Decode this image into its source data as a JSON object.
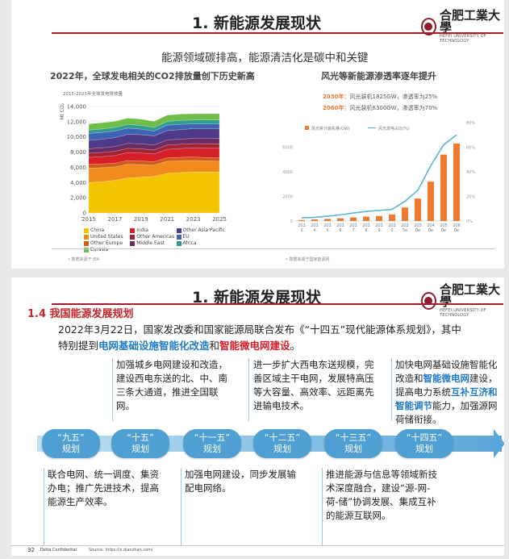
{
  "slide1": {
    "title": "1. 新能源发展现状",
    "subtitle": "能源领域碳排高，能源清洁化是碳中和关键",
    "logo": {
      "name": "合肥工業大學",
      "en": "HEFEI UNIVERSITY OF TECHNOLOGY"
    },
    "left_chart_title": "2022年，全球发电相关的CO2排放量创下历史新高",
    "right_chart_title": "风光等新能源渗透率逐年提升",
    "left_source": "• 数据来源于 IEA",
    "right_source": "• 数据来源于国家能源网",
    "notes": [
      {
        "year": "2030年：",
        "text": "风光装机1825GW，渗透率为25%"
      },
      {
        "year": "2060年：",
        "text": "风光装机6300GW，渗透率为70%"
      }
    ]
  },
  "slide2": {
    "title": "1. 新能源发展现状",
    "section": "1.4 我国能源发展规划",
    "intro_1": "2022年3月22日，国家发改委和国家能源局联合发布《“十四五”现代能源体系规划》，其中",
    "intro_2a": "特别提到",
    "intro_2b": "电网基础设施智能化改造",
    "intro_2c": "和",
    "intro_2d": "智能微电网建设",
    "intro_2e": "。",
    "plans": [
      {
        "line1": "“九五”",
        "line2": "规划"
      },
      {
        "line1": "“十五”",
        "line2": "规划"
      },
      {
        "line1": "“十一五”",
        "line2": "规划"
      },
      {
        "line1": "“十二五”",
        "line2": "规划"
      },
      {
        "line1": "“十三五”",
        "line2": "规划"
      },
      {
        "line1": "“十四五”",
        "line2": "规划"
      }
    ],
    "top_texts": {
      "p2": "加强城乡电网建设和改造，建设西电东送的北、中、南三条大通道，推进全国联网。",
      "p4": "进一步扩大西电东送规模，完善区域主干电网，发展特高压等大容量、高效率、远距离先进输电技术。",
      "p6a": "加快电网基础设施智能化改造和",
      "p6b": "智能微电网",
      "p6c": "建设，提高电力系统",
      "p6d": "互补互济和智能调节",
      "p6e": "能力，加强源网荷储衔接。"
    },
    "bottom_texts": {
      "p1": "联合电网、统一调度、集资办电；推广先进技术，提高能源生产效率。",
      "p3": "加强电网建设，同步发展输配电网络。",
      "p5": "推进能源与信息等领域新技术深度融合，建设“源-网-荷-储”协调发展、集成互补的能源互联网。"
    },
    "footer": {
      "page": "32",
      "company": "Delta Confidential",
      "source": "Source: https://x.qianzhan.com/"
    }
  },
  "chart_data": [
    {
      "type": "area",
      "title": "2015-2025年全球发电排放量",
      "ylabel": "Mt CO₂",
      "x": [
        2015,
        2016,
        2017,
        2018,
        2019,
        2020,
        2021,
        2022,
        2023,
        2024,
        2025
      ],
      "xticks": [
        2015,
        2017,
        2019,
        2021,
        2023,
        2025
      ],
      "ylim": [
        0,
        14000
      ],
      "yticks": [
        0,
        2000,
        4000,
        6000,
        8000,
        10000,
        12000,
        14000
      ],
      "series": [
        {
          "name": "China",
          "color": "#f2c500",
          "values": [
            4000,
            4100,
            4300,
            4600,
            4700,
            4800,
            5200,
            5300,
            5400,
            5400,
            5400
          ]
        },
        {
          "name": "United States",
          "color": "#f08a1c",
          "values": [
            1900,
            1850,
            1750,
            1800,
            1650,
            1500,
            1600,
            1550,
            1500,
            1450,
            1400
          ]
        },
        {
          "name": "Other Europe",
          "color": "#cf5b17",
          "values": [
            500,
            500,
            500,
            500,
            480,
            450,
            470,
            470,
            460,
            450,
            440
          ]
        },
        {
          "name": "India",
          "color": "#d61f26",
          "values": [
            900,
            950,
            1000,
            1050,
            1050,
            1000,
            1100,
            1150,
            1200,
            1250,
            1300
          ]
        },
        {
          "name": "Other Americas",
          "color": "#a32236",
          "values": [
            550,
            550,
            550,
            550,
            550,
            530,
            560,
            560,
            560,
            560,
            560
          ]
        },
        {
          "name": "Middle East",
          "color": "#6b2d62",
          "values": [
            600,
            620,
            640,
            650,
            660,
            650,
            670,
            680,
            690,
            700,
            700
          ]
        },
        {
          "name": "Other Asia Pacific",
          "color": "#4f3a8a",
          "values": [
            1100,
            1130,
            1160,
            1190,
            1200,
            1180,
            1230,
            1250,
            1270,
            1290,
            1300
          ]
        },
        {
          "name": "EU",
          "color": "#3e63b3",
          "values": [
            900,
            880,
            870,
            820,
            730,
            650,
            700,
            700,
            620,
            600,
            580
          ]
        },
        {
          "name": "Africa",
          "color": "#2f9c8f",
          "values": [
            450,
            460,
            470,
            480,
            490,
            480,
            500,
            510,
            520,
            530,
            540
          ]
        },
        {
          "name": "Eurasia",
          "color": "#6fbe4a",
          "values": [
            800,
            810,
            820,
            830,
            830,
            800,
            830,
            820,
            820,
            820,
            820
          ]
        }
      ]
    },
    {
      "type": "bar",
      "legend": [
        "风光累计装机量(GW)",
        "风光发电占比(%)"
      ],
      "categories": [
        "2013",
        "2014",
        "2015",
        "2016",
        "2017",
        "2018",
        "2019",
        "2020",
        "2025e",
        "2030e",
        "2040e",
        "2050e",
        "2060e"
      ],
      "xticks": [
        "201\n3",
        "201\n4",
        "201\n5",
        "201\n6",
        "201\n7",
        "201\n8",
        "201\n9",
        "202\n0",
        "202\n5e",
        "203\n0e",
        "204\n0e",
        "205\n0e",
        "206\n0e"
      ],
      "y_left_ticks": [
        0,
        2000,
        4000,
        6000
      ],
      "y_right_ticks": [
        "0%",
        "20%",
        "40%",
        "60%",
        "80%"
      ],
      "ylim": [
        0,
        8000
      ],
      "series": [
        {
          "name": "风光累计装机量(GW)",
          "values": [
            80,
            130,
            170,
            220,
            290,
            360,
            410,
            530,
            1100,
            1825,
            3200,
            5400,
            6300
          ]
        },
        {
          "name": "风光发电占比(%)",
          "values": [
            2.6,
            3,
            3.9,
            5,
            6.5,
            7.8,
            8.6,
            9.5,
            16,
            25,
            45,
            62,
            70
          ]
        }
      ]
    }
  ]
}
